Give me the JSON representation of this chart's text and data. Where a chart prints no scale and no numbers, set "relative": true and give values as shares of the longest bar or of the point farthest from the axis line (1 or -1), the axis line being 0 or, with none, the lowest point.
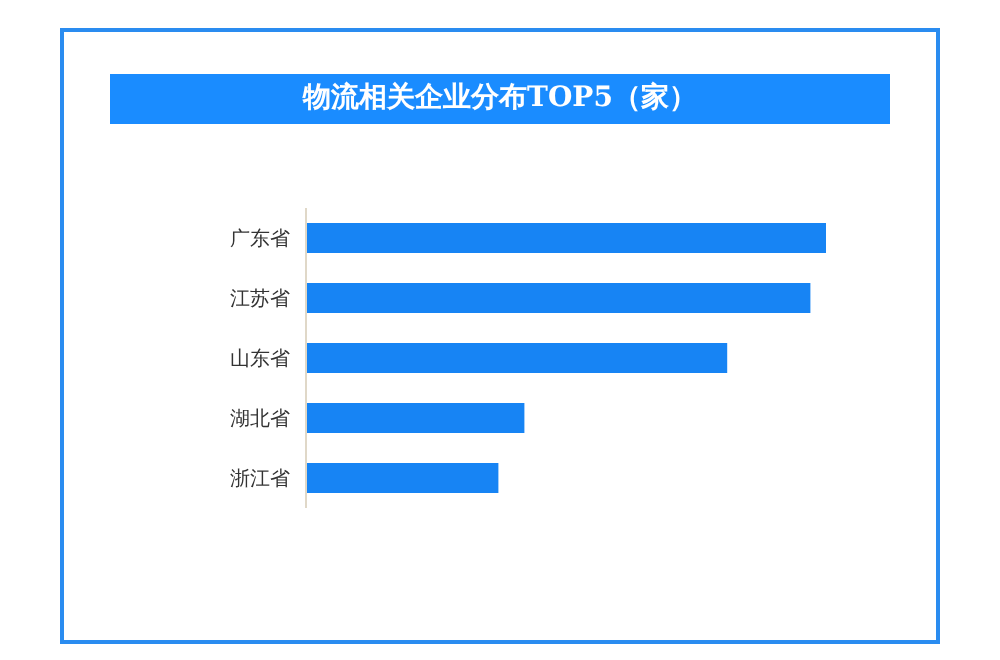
{
  "chart_data": {
    "type": "bar",
    "orientation": "horizontal",
    "relative": true,
    "title": "物流相关企业分布TOP5（家）",
    "categories": [
      "广东省",
      "江苏省",
      "山东省",
      "湖北省",
      "浙江省"
    ],
    "values": [
      1,
      0.97,
      0.81,
      0.42,
      0.37
    ],
    "color": "#1784f4"
  }
}
